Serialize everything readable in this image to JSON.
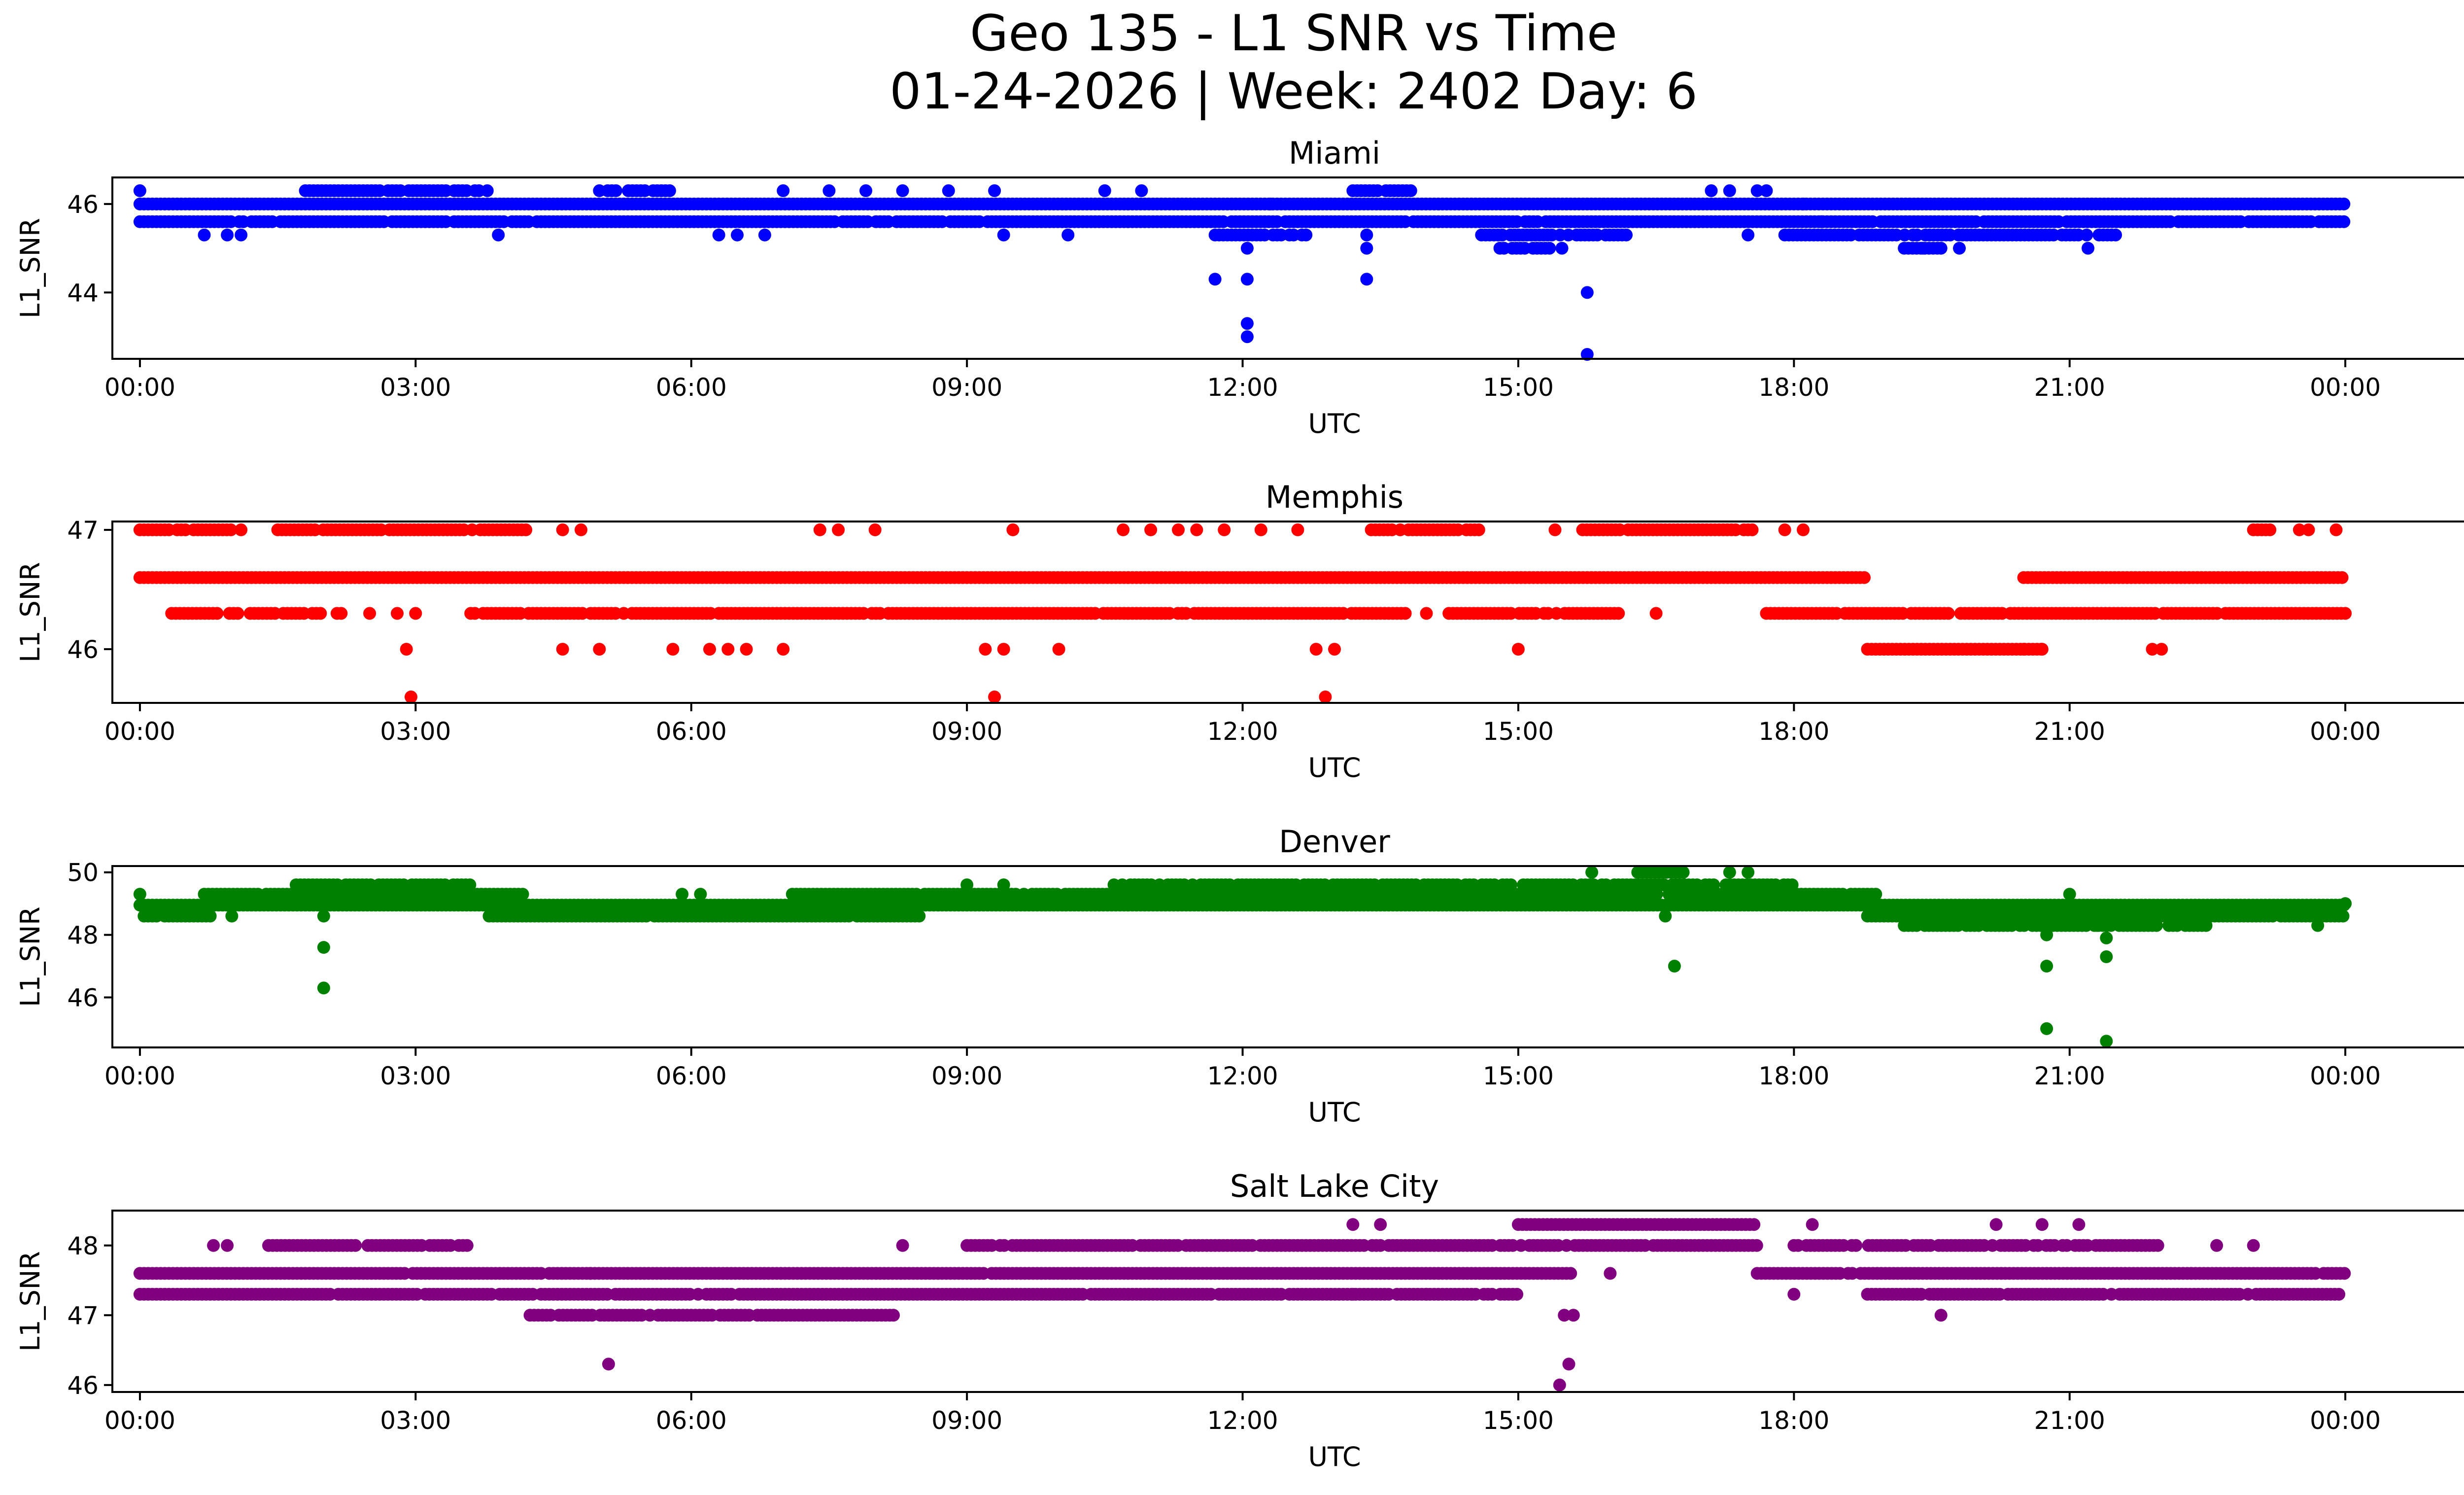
{
  "figure": {
    "title_line1": "Geo 135 - L1 SNR vs Time",
    "title_line2": "01-24-2026 | Week: 2402 Day: 6"
  },
  "chart_data": [
    {
      "type": "scatter",
      "title": "Miami",
      "xlabel": "UTC",
      "ylabel": "L1_SNR",
      "color": "#0000ff",
      "xlim": [
        -0.3,
        26.3
      ],
      "ylim": [
        42.5,
        46.6
      ],
      "xticks": [
        0,
        3,
        6,
        9,
        12,
        15,
        18,
        21,
        24
      ],
      "xtick_labels": [
        "00:00",
        "03:00",
        "06:00",
        "09:00",
        "12:00",
        "15:00",
        "18:00",
        "21:00",
        "00:00"
      ],
      "yticks": [
        44,
        46
      ],
      "ytick_labels": [
        "44",
        "46"
      ],
      "bands": [
        {
          "y": 46.0,
          "start": 0.0,
          "end": 24.0,
          "density": 1.0
        },
        {
          "y": 45.6,
          "start": 0.0,
          "end": 24.0,
          "density": 0.95
        },
        {
          "y": 46.3,
          "start": 1.8,
          "end": 3.8,
          "density": 0.85
        },
        {
          "y": 46.3,
          "start": 5.0,
          "end": 5.9,
          "density": 0.8
        },
        {
          "y": 46.3,
          "start": 13.2,
          "end": 13.9,
          "density": 0.8
        },
        {
          "y": 45.3,
          "start": 11.7,
          "end": 12.7,
          "density": 0.85
        },
        {
          "y": 45.3,
          "start": 14.6,
          "end": 16.2,
          "density": 0.85
        },
        {
          "y": 45.3,
          "start": 17.9,
          "end": 21.5,
          "density": 0.9
        },
        {
          "y": 45.0,
          "start": 14.8,
          "end": 15.5,
          "density": 0.8
        },
        {
          "y": 45.0,
          "start": 19.2,
          "end": 19.6,
          "density": 0.8
        }
      ],
      "points": [
        {
          "x": 0.0,
          "y": 46.3
        },
        {
          "x": 0.7,
          "y": 45.3
        },
        {
          "x": 0.95,
          "y": 45.3
        },
        {
          "x": 1.1,
          "y": 45.3
        },
        {
          "x": 3.9,
          "y": 45.3
        },
        {
          "x": 6.3,
          "y": 45.3
        },
        {
          "x": 6.5,
          "y": 45.3
        },
        {
          "x": 6.8,
          "y": 45.3
        },
        {
          "x": 7.0,
          "y": 46.3
        },
        {
          "x": 7.5,
          "y": 46.3
        },
        {
          "x": 7.9,
          "y": 46.3
        },
        {
          "x": 8.3,
          "y": 46.3
        },
        {
          "x": 8.8,
          "y": 46.3
        },
        {
          "x": 9.3,
          "y": 46.3
        },
        {
          "x": 9.4,
          "y": 45.3
        },
        {
          "x": 10.1,
          "y": 45.3
        },
        {
          "x": 10.5,
          "y": 46.3
        },
        {
          "x": 10.9,
          "y": 46.3
        },
        {
          "x": 11.7,
          "y": 44.3
        },
        {
          "x": 12.05,
          "y": 45.0
        },
        {
          "x": 12.05,
          "y": 44.3
        },
        {
          "x": 12.05,
          "y": 43.3
        },
        {
          "x": 12.05,
          "y": 43.0
        },
        {
          "x": 12.3,
          "y": 46.0
        },
        {
          "x": 13.35,
          "y": 45.0
        },
        {
          "x": 13.35,
          "y": 44.3
        },
        {
          "x": 13.35,
          "y": 45.3
        },
        {
          "x": 15.75,
          "y": 44.0
        },
        {
          "x": 15.75,
          "y": 42.6
        },
        {
          "x": 17.1,
          "y": 46.3
        },
        {
          "x": 17.3,
          "y": 46.3
        },
        {
          "x": 17.6,
          "y": 46.3
        },
        {
          "x": 17.7,
          "y": 46.3
        },
        {
          "x": 17.5,
          "y": 45.3
        },
        {
          "x": 18.3,
          "y": 45.6
        },
        {
          "x": 19.4,
          "y": 45.0
        },
        {
          "x": 19.6,
          "y": 45.0
        },
        {
          "x": 19.8,
          "y": 45.0
        },
        {
          "x": 21.2,
          "y": 45.0
        },
        {
          "x": 18.1,
          "y": 46.0
        }
      ]
    },
    {
      "type": "scatter",
      "title": "Memphis",
      "xlabel": "UTC",
      "ylabel": "L1_SNR",
      "color": "#ff0000",
      "xlim": [
        -0.3,
        26.3
      ],
      "ylim": [
        45.55,
        47.07
      ],
      "xticks": [
        0,
        3,
        6,
        9,
        12,
        15,
        18,
        21,
        24
      ],
      "xtick_labels": [
        "00:00",
        "03:00",
        "06:00",
        "09:00",
        "12:00",
        "15:00",
        "18:00",
        "21:00",
        "00:00"
      ],
      "yticks": [
        46,
        47
      ],
      "ytick_labels": [
        "46",
        "47"
      ],
      "bands": [
        {
          "y": 46.6,
          "start": 0.0,
          "end": 18.8,
          "density": 1.0
        },
        {
          "y": 46.6,
          "start": 20.5,
          "end": 24.0,
          "density": 1.0
        },
        {
          "y": 46.3,
          "start": 0.3,
          "end": 2.2,
          "density": 0.85
        },
        {
          "y": 46.3,
          "start": 3.6,
          "end": 13.8,
          "density": 0.95
        },
        {
          "y": 46.3,
          "start": 14.2,
          "end": 16.1,
          "density": 0.9
        },
        {
          "y": 46.3,
          "start": 17.7,
          "end": 24.0,
          "density": 0.95
        },
        {
          "y": 47.0,
          "start": 0.0,
          "end": 1.0,
          "density": 0.95
        },
        {
          "y": 47.0,
          "start": 1.5,
          "end": 4.2,
          "density": 0.95
        },
        {
          "y": 47.0,
          "start": 13.4,
          "end": 14.6,
          "density": 0.9
        },
        {
          "y": 47.0,
          "start": 15.7,
          "end": 17.6,
          "density": 0.95
        },
        {
          "y": 47.0,
          "start": 23.0,
          "end": 23.2,
          "density": 0.9
        },
        {
          "y": 46.0,
          "start": 18.8,
          "end": 20.7,
          "density": 1.0
        }
      ],
      "points": [
        {
          "x": 1.1,
          "y": 47.0
        },
        {
          "x": 2.5,
          "y": 46.3
        },
        {
          "x": 2.8,
          "y": 46.3
        },
        {
          "x": 2.9,
          "y": 46.0
        },
        {
          "x": 2.95,
          "y": 45.6
        },
        {
          "x": 3.0,
          "y": 46.3
        },
        {
          "x": 4.6,
          "y": 47.0
        },
        {
          "x": 4.8,
          "y": 47.0
        },
        {
          "x": 4.6,
          "y": 46.0
        },
        {
          "x": 5.0,
          "y": 46.0
        },
        {
          "x": 5.8,
          "y": 46.0
        },
        {
          "x": 6.2,
          "y": 46.0
        },
        {
          "x": 6.4,
          "y": 46.0
        },
        {
          "x": 6.6,
          "y": 46.0
        },
        {
          "x": 7.0,
          "y": 46.0
        },
        {
          "x": 7.4,
          "y": 47.0
        },
        {
          "x": 7.6,
          "y": 47.0
        },
        {
          "x": 8.0,
          "y": 47.0
        },
        {
          "x": 9.2,
          "y": 46.0
        },
        {
          "x": 9.3,
          "y": 45.6
        },
        {
          "x": 9.4,
          "y": 46.0
        },
        {
          "x": 9.5,
          "y": 47.0
        },
        {
          "x": 10.0,
          "y": 46.0
        },
        {
          "x": 10.7,
          "y": 47.0
        },
        {
          "x": 11.0,
          "y": 47.0
        },
        {
          "x": 11.3,
          "y": 47.0
        },
        {
          "x": 11.5,
          "y": 47.0
        },
        {
          "x": 11.8,
          "y": 47.0
        },
        {
          "x": 12.2,
          "y": 47.0
        },
        {
          "x": 12.6,
          "y": 47.0
        },
        {
          "x": 12.8,
          "y": 46.0
        },
        {
          "x": 12.9,
          "y": 45.6
        },
        {
          "x": 13.0,
          "y": 46.0
        },
        {
          "x": 14.0,
          "y": 46.3
        },
        {
          "x": 15.0,
          "y": 46.0
        },
        {
          "x": 15.4,
          "y": 47.0
        },
        {
          "x": 16.5,
          "y": 46.3
        },
        {
          "x": 17.9,
          "y": 47.0
        },
        {
          "x": 18.1,
          "y": 47.0
        },
        {
          "x": 20.5,
          "y": 46.0
        },
        {
          "x": 20.7,
          "y": 46.0
        },
        {
          "x": 22.0,
          "y": 46.0
        },
        {
          "x": 21.9,
          "y": 46.0
        },
        {
          "x": 23.5,
          "y": 47.0
        },
        {
          "x": 23.6,
          "y": 47.0
        },
        {
          "x": 23.9,
          "y": 47.0
        }
      ]
    },
    {
      "type": "scatter",
      "title": "Denver",
      "xlabel": "UTC",
      "ylabel": "L1_SNR",
      "color": "#008000",
      "xlim": [
        -0.3,
        26.3
      ],
      "ylim": [
        44.4,
        50.2
      ],
      "xticks": [
        0,
        3,
        6,
        9,
        12,
        15,
        18,
        21,
        24
      ],
      "xtick_labels": [
        "00:00",
        "03:00",
        "06:00",
        "09:00",
        "12:00",
        "15:00",
        "18:00",
        "21:00",
        "00:00"
      ],
      "yticks": [
        46,
        48,
        50
      ],
      "ytick_labels": [
        "46",
        "48",
        "50"
      ],
      "bands": [
        {
          "y": 48.95,
          "start": 0.0,
          "end": 24.0,
          "density": 1.0
        },
        {
          "y": 48.6,
          "start": 0.0,
          "end": 0.8,
          "density": 0.95
        },
        {
          "y": 48.6,
          "start": 3.8,
          "end": 8.5,
          "density": 0.95
        },
        {
          "y": 48.6,
          "start": 18.8,
          "end": 24.0,
          "density": 0.95
        },
        {
          "y": 49.3,
          "start": 0.7,
          "end": 4.2,
          "density": 0.95
        },
        {
          "y": 49.3,
          "start": 7.1,
          "end": 18.9,
          "density": 0.95
        },
        {
          "y": 49.6,
          "start": 1.7,
          "end": 3.6,
          "density": 0.9
        },
        {
          "y": 49.6,
          "start": 10.6,
          "end": 18.0,
          "density": 0.9
        },
        {
          "y": 48.3,
          "start": 19.2,
          "end": 22.5,
          "density": 0.9
        },
        {
          "y": 50.0,
          "start": 16.3,
          "end": 16.8,
          "density": 0.9
        }
      ],
      "points": [
        {
          "x": 0.0,
          "y": 49.3
        },
        {
          "x": 1.0,
          "y": 48.6
        },
        {
          "x": 2.0,
          "y": 48.6
        },
        {
          "x": 2.0,
          "y": 47.6
        },
        {
          "x": 2.0,
          "y": 46.3
        },
        {
          "x": 5.9,
          "y": 49.3
        },
        {
          "x": 6.1,
          "y": 49.3
        },
        {
          "x": 9.0,
          "y": 49.6
        },
        {
          "x": 9.4,
          "y": 49.6
        },
        {
          "x": 15.8,
          "y": 50.0
        },
        {
          "x": 17.3,
          "y": 50.0
        },
        {
          "x": 17.5,
          "y": 50.0
        },
        {
          "x": 16.7,
          "y": 47.0
        },
        {
          "x": 16.6,
          "y": 48.6
        },
        {
          "x": 20.75,
          "y": 47.0
        },
        {
          "x": 20.75,
          "y": 48.0
        },
        {
          "x": 20.75,
          "y": 45.0
        },
        {
          "x": 21.0,
          "y": 49.3
        },
        {
          "x": 21.4,
          "y": 47.3
        },
        {
          "x": 21.4,
          "y": 47.9
        },
        {
          "x": 21.4,
          "y": 44.6
        },
        {
          "x": 21.3,
          "y": 48.3
        },
        {
          "x": 23.7,
          "y": 48.3
        },
        {
          "x": 24.0,
          "y": 49.0
        }
      ]
    },
    {
      "type": "scatter",
      "title": "Salt Lake City",
      "xlabel": "UTC",
      "ylabel": "L1_SNR",
      "color": "#800080",
      "xlim": [
        -0.3,
        26.3
      ],
      "ylim": [
        45.9,
        48.5
      ],
      "xticks": [
        0,
        3,
        6,
        9,
        12,
        15,
        18,
        21,
        24
      ],
      "xtick_labels": [
        "00:00",
        "03:00",
        "06:00",
        "09:00",
        "12:00",
        "15:00",
        "18:00",
        "21:00",
        "00:00"
      ],
      "yticks": [
        46,
        47,
        48
      ],
      "ytick_labels": [
        "46",
        "47",
        "48"
      ],
      "bands": [
        {
          "y": 47.6,
          "start": 0.0,
          "end": 15.6,
          "density": 0.98
        },
        {
          "y": 47.6,
          "start": 17.6,
          "end": 24.0,
          "density": 0.98
        },
        {
          "y": 47.3,
          "start": 0.0,
          "end": 15.0,
          "density": 0.95
        },
        {
          "y": 47.3,
          "start": 18.8,
          "end": 24.0,
          "density": 0.95
        },
        {
          "y": 47.0,
          "start": 4.2,
          "end": 8.2,
          "density": 0.9
        },
        {
          "y": 48.0,
          "start": 1.4,
          "end": 3.6,
          "density": 0.9
        },
        {
          "y": 48.0,
          "start": 9.0,
          "end": 17.6,
          "density": 0.95
        },
        {
          "y": 48.0,
          "start": 18.0,
          "end": 22.0,
          "density": 0.85
        },
        {
          "y": 48.3,
          "start": 15.0,
          "end": 17.6,
          "density": 1.0
        }
      ],
      "points": [
        {
          "x": 0.8,
          "y": 48.0
        },
        {
          "x": 0.95,
          "y": 48.0
        },
        {
          "x": 5.1,
          "y": 46.3
        },
        {
          "x": 4.9,
          "y": 47.6
        },
        {
          "x": 8.3,
          "y": 48.0
        },
        {
          "x": 8.2,
          "y": 47.0
        },
        {
          "x": 13.2,
          "y": 48.3
        },
        {
          "x": 13.5,
          "y": 48.3
        },
        {
          "x": 13.2,
          "y": 47.3
        },
        {
          "x": 14.0,
          "y": 47.3
        },
        {
          "x": 15.45,
          "y": 46.0
        },
        {
          "x": 15.55,
          "y": 46.3
        },
        {
          "x": 15.5,
          "y": 47.0
        },
        {
          "x": 15.6,
          "y": 47.0
        },
        {
          "x": 16.0,
          "y": 47.6
        },
        {
          "x": 18.0,
          "y": 47.3
        },
        {
          "x": 18.2,
          "y": 48.3
        },
        {
          "x": 19.6,
          "y": 47.0
        },
        {
          "x": 20.2,
          "y": 48.3
        },
        {
          "x": 20.7,
          "y": 48.3
        },
        {
          "x": 21.1,
          "y": 48.3
        },
        {
          "x": 22.6,
          "y": 48.0
        },
        {
          "x": 23.0,
          "y": 48.0
        }
      ]
    }
  ]
}
